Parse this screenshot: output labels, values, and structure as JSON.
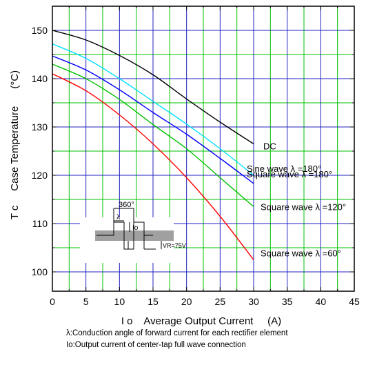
{
  "chart_data": {
    "type": "line",
    "xlabel": "I o    Average Output Current     (A)",
    "ylabel": "T c     Case Temperature      (°C)",
    "xlim": [
      0,
      45
    ],
    "ylim": [
      96,
      155
    ],
    "x_ticks": [
      0,
      5,
      10,
      15,
      20,
      25,
      30,
      35,
      40,
      45
    ],
    "y_ticks": [
      100,
      110,
      120,
      130,
      140,
      150
    ],
    "grid": true,
    "colors": {
      "major_grid": "#2020c0",
      "minor_grid": "#00c000"
    },
    "series": [
      {
        "name": "DC",
        "color": "#000000",
        "x": [
          0,
          5,
          10,
          15,
          20,
          25,
          30
        ],
        "y": [
          150,
          148,
          144.8,
          140.8,
          135.8,
          131,
          126.5
        ]
      },
      {
        "name": "Sine wave λ =180°",
        "color": "#00e0ff",
        "x": [
          0,
          5,
          10,
          15,
          20,
          25,
          30
        ],
        "y": [
          147.2,
          144.2,
          140,
          135.3,
          130.6,
          125.5,
          120
        ]
      },
      {
        "name": "Square wave λ =180°",
        "color": "#0000ff",
        "x": [
          0,
          5,
          10,
          15,
          20,
          25,
          30
        ],
        "y": [
          144.7,
          141.8,
          137.7,
          133,
          128.5,
          123.5,
          118.3
        ]
      },
      {
        "name": "Square wave λ =120°",
        "color": "#00c000",
        "x": [
          0,
          5,
          10,
          15,
          20,
          25,
          30
        ],
        "y": [
          143,
          140,
          135.7,
          130.5,
          125.5,
          119.5,
          113.5
        ]
      },
      {
        "name": "Square wave λ =60°",
        "color": "#ff0000",
        "x": [
          0,
          5,
          10,
          15,
          20,
          25,
          30
        ],
        "y": [
          141,
          137.5,
          132.5,
          126.5,
          119.5,
          111.5,
          102.5
        ]
      }
    ],
    "inset": {
      "period_label": "360°",
      "conduction_label": "λ",
      "current_label": "Io",
      "voltage_label": "VR=75V"
    }
  },
  "captions": [
    "λ:Conduction angle of forward current for each rectifier element",
    "Io:Output current of center-tap full wave connection"
  ]
}
